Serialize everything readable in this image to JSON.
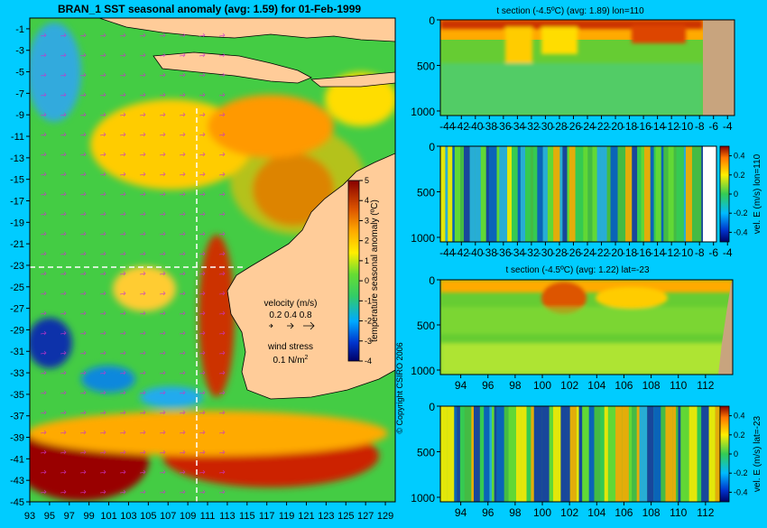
{
  "colors": {
    "background": "#00ccff",
    "land": "#ffcc99",
    "deep_land": "#c8a47e",
    "guide_line": "#ffffff",
    "arrows": "#cc33cc"
  },
  "chart_data": [
    {
      "type": "heatmap",
      "title": "BRAN_1 SST seasonal anomaly (avg: 1.59) for 01-Feb-1999",
      "x_ticks": [
        "93",
        "95",
        "97",
        "99",
        "101",
        "103",
        "105",
        "107",
        "109",
        "111",
        "113",
        "115",
        "117",
        "119",
        "121",
        "123",
        "125",
        "127",
        "129"
      ],
      "y_ticks": [
        "-1",
        "-3",
        "-5",
        "-7",
        "-9",
        "-11",
        "-13",
        "-15",
        "-17",
        "-19",
        "-21",
        "-23",
        "-25",
        "-27",
        "-29",
        "-31",
        "-33",
        "-35",
        "-37",
        "-39",
        "-41",
        "-43",
        "-45"
      ],
      "xlim": [
        93,
        130
      ],
      "ylim": [
        -45,
        0
      ],
      "crosshair": {
        "lon": 110,
        "lat": -23
      },
      "colorbar": {
        "label": "temperature seasonal anomaly (ºC)",
        "ticks": [
          "5",
          "4",
          "3",
          "2",
          "1",
          "0",
          "-1",
          "-2",
          "-3",
          "-4"
        ],
        "range": [
          -4,
          5
        ]
      },
      "velocity_legend": {
        "title": "velocity (m/s)",
        "values": "0.2 0.4 0.8"
      },
      "wind_legend": {
        "title": "wind stress",
        "value": "0.1 N/m",
        "value_sup": "2"
      },
      "copyright": "© Copyright CSIRO 2006"
    },
    {
      "type": "heatmap",
      "title": "t section (-4.5ºC) (avg: 1.89) lon=110",
      "x_ticks": [
        "-44",
        "-42",
        "-40",
        "-38",
        "-36",
        "-34",
        "-32",
        "-30",
        "-28",
        "-26",
        "-24",
        "-22",
        "-20",
        "-18",
        "-16",
        "-14",
        "-12",
        "-10",
        "-8",
        "-6",
        "-4"
      ],
      "y_ticks": [
        "0",
        "500",
        "1000"
      ],
      "xlim": [
        -45,
        -3
      ],
      "ylim": [
        1050,
        0
      ]
    },
    {
      "type": "heatmap",
      "title": "",
      "x_ticks": [
        "-44",
        "-42",
        "-40",
        "-38",
        "-36",
        "-34",
        "-32",
        "-30",
        "-28",
        "-26",
        "-24",
        "-22",
        "-20",
        "-18",
        "-16",
        "-14",
        "-12",
        "-10",
        "-8",
        "-6",
        "-4"
      ],
      "y_ticks": [
        "0",
        "500",
        "1000"
      ],
      "xlim": [
        -45,
        -3
      ],
      "ylim": [
        1050,
        0
      ],
      "colorbar": {
        "label": "vel. E (m/s) lon=110",
        "ticks": [
          "0.4",
          "0.2",
          "0",
          "-0.2",
          "-0.4"
        ],
        "range": [
          -0.5,
          0.5
        ]
      }
    },
    {
      "type": "heatmap",
      "title": "t section (-4.5ºC) (avg: 1.22) lat=-23",
      "x_ticks": [
        "94",
        "96",
        "98",
        "100",
        "102",
        "104",
        "106",
        "108",
        "110",
        "112"
      ],
      "y_ticks": [
        "0",
        "500",
        "1000"
      ],
      "xlim": [
        92.5,
        114
      ],
      "ylim": [
        1050,
        0
      ]
    },
    {
      "type": "heatmap",
      "title": "",
      "x_ticks": [
        "94",
        "96",
        "98",
        "100",
        "102",
        "104",
        "106",
        "108",
        "110",
        "112"
      ],
      "y_ticks": [
        "0",
        "500",
        "1000"
      ],
      "xlim": [
        92.5,
        114
      ],
      "ylim": [
        1050,
        0
      ],
      "colorbar": {
        "label": "vel. E (m/s) lat=-23",
        "ticks": [
          "0.4",
          "0.2",
          "0",
          "-0.2",
          "-0.4"
        ],
        "range": [
          -0.5,
          0.5
        ]
      }
    }
  ]
}
